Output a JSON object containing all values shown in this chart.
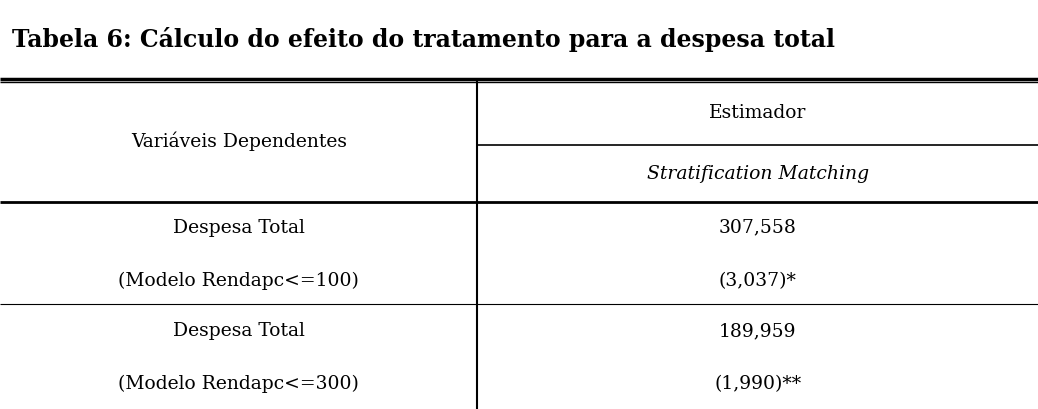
{
  "title": "Tabela 6: Cálculo do efeito do tratamento para a despesa total",
  "col1_header": "Variáveis Dependentes",
  "col2_header1": "Estimador",
  "col2_header2": "Stratification Matching",
  "row1_col1_line1": "Despesa Total",
  "row1_col1_line2": "(Modelo Rendapc<=100)",
  "row1_col2_line1": "307,558",
  "row1_col2_line2": "(3,037)*",
  "row2_col1_line1": "Despesa Total",
  "row2_col1_line2": "(Modelo Rendapc<=300)",
  "row2_col2_line1": "189,959",
  "row2_col2_line2": "(1,990)**",
  "bg_color": "#ffffff",
  "text_color": "#000000",
  "title_fontsize": 17,
  "body_fontsize": 13.5,
  "col_split": 0.46,
  "title_bar_height": 0.195,
  "line_thick": 2.0,
  "line_thin": 1.2
}
